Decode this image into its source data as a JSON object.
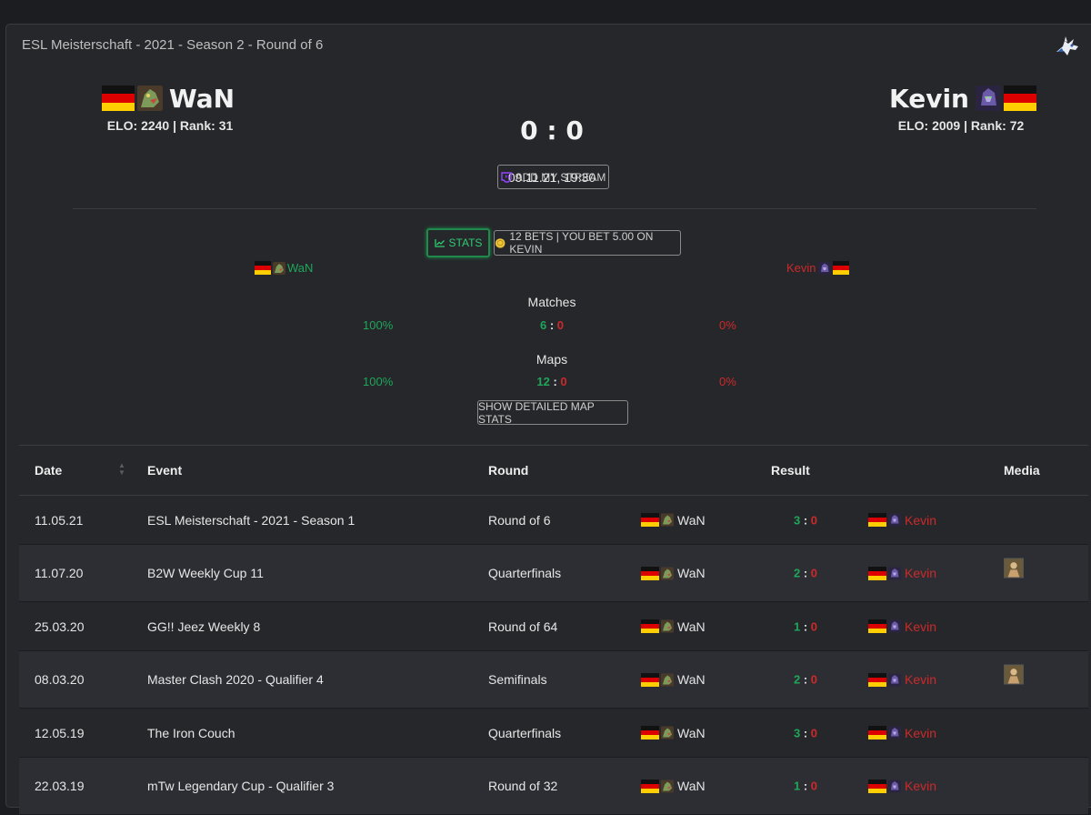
{
  "card": {
    "title": "ESL Meisterschaft - 2021 - Season 2 - Round of 6"
  },
  "match": {
    "left": {
      "name": "WaN",
      "info": "ELO: 2240 | Rank: 31"
    },
    "right": {
      "name": "Kevin",
      "info": "ELO: 2009 | Rank: 72"
    },
    "score": "0 : 0",
    "date": "09.11.21, 19:30",
    "stream_label": "ADD MY STREAM"
  },
  "buttons": {
    "stats_label": "STATS",
    "bets_label": "12 BETS | YOU BET 5.00 ON KEVIN",
    "detail_label": "SHOW DETAILED MAP STATS"
  },
  "stats": {
    "left_name": "WaN",
    "right_name": "Kevin",
    "matches": {
      "title": "Matches",
      "left_pct": "100%",
      "left": "6",
      "sep": ":",
      "right": "0",
      "right_pct": "0%"
    },
    "maps": {
      "title": "Maps",
      "left_pct": "100%",
      "left": "12",
      "sep": ":",
      "right": "0",
      "right_pct": "0%"
    }
  },
  "table": {
    "headers": {
      "date": "Date",
      "event": "Event",
      "round": "Round",
      "result": "Result",
      "media": "Media"
    },
    "rows": [
      {
        "date": "11.05.21",
        "event": "ESL Meisterschaft - 2021 - Season 1",
        "round": "Round of 6",
        "p1": "WaN",
        "s1": "3",
        "s2": "0",
        "p2": "Kevin",
        "media": false
      },
      {
        "date": "11.07.20",
        "event": "B2W Weekly Cup 11",
        "round": "Quarterfinals",
        "p1": "WaN",
        "s1": "2",
        "s2": "0",
        "p2": "Kevin",
        "media": true
      },
      {
        "date": "25.03.20",
        "event": "GG!! Jeez Weekly 8",
        "round": "Round of 64",
        "p1": "WaN",
        "s1": "1",
        "s2": "0",
        "p2": "Kevin",
        "media": false
      },
      {
        "date": "08.03.20",
        "event": "Master Clash 2020 - Qualifier 4",
        "round": "Semifinals",
        "p1": "WaN",
        "s1": "2",
        "s2": "0",
        "p2": "Kevin",
        "media": true
      },
      {
        "date": "12.05.19",
        "event": "The Iron Couch",
        "round": "Quarterfinals",
        "p1": "WaN",
        "s1": "3",
        "s2": "0",
        "p2": "Kevin",
        "media": false
      },
      {
        "date": "22.03.19",
        "event": "mTw Legendary Cup - Qualifier 3",
        "round": "Round of 32",
        "p1": "WaN",
        "s1": "1",
        "s2": "0",
        "p2": "Kevin",
        "media": false
      }
    ]
  },
  "colors": {
    "win": "#1fa65a",
    "loss": "#cc2a2a",
    "background": "#1c1d21",
    "card": "#26272b"
  },
  "icons": {
    "flag": "germany-flag-icon",
    "stream": "twitch-icon",
    "stats": "chart-line-icon",
    "bets": "coin-icon",
    "corner": "unicorn-icon",
    "media": "video-thumbnail-icon"
  }
}
